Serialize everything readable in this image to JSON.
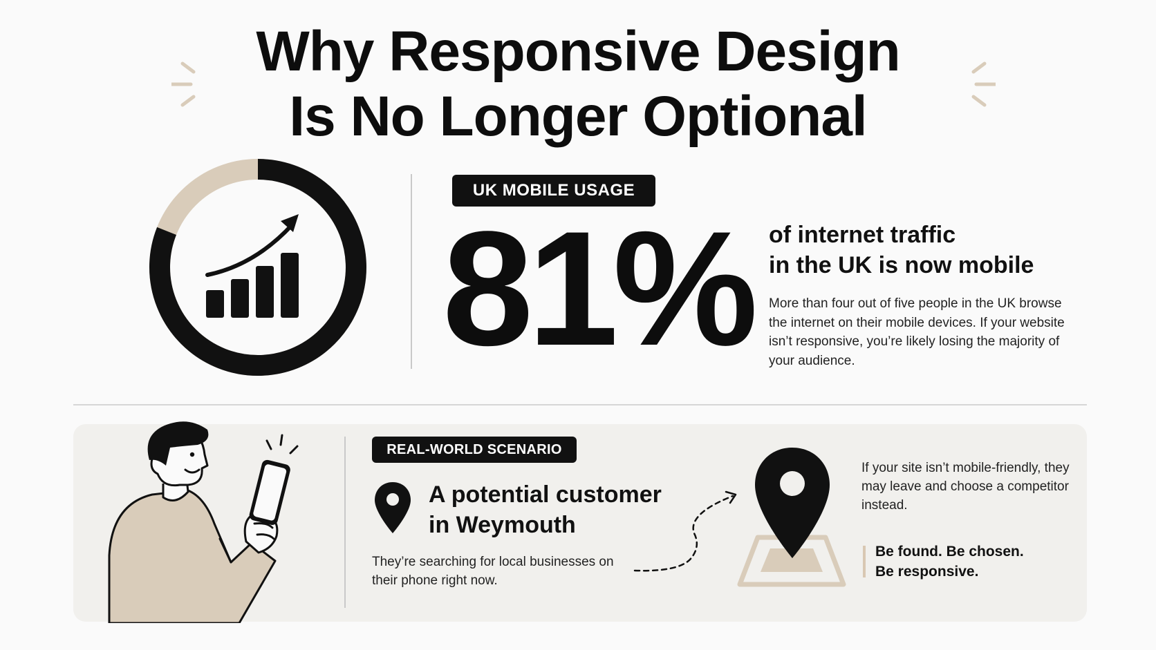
{
  "title": {
    "line1": "Why Responsive Design",
    "line2": "Is No Longer Optional"
  },
  "colors": {
    "accent": "#d9ccba",
    "dark": "#111111",
    "card_bg": "#f1f0ed"
  },
  "mobile_usage": {
    "badge": "UK MOBILE USAGE",
    "percent_value": 81,
    "stat": "81%",
    "headline_line1": "of internet traffic",
    "headline_line2": "in the UK is now mobile",
    "description": "More than four out of five people in the UK browse the internet on their mobile devices. If your website isn’t responsive, you’re likely losing the majority of your audience."
  },
  "scenario": {
    "badge": "REAL-WORLD SCENARIO",
    "headline_line1": "A potential customer",
    "headline_line2": "in Weymouth",
    "description": "They’re searching for local businesses on their phone right now.",
    "side_description": "If your site isn’t mobile-friendly, they may leave and choose a competitor instead.",
    "tagline_line1": "Be found. Be chosen.",
    "tagline_line2": "Be responsive."
  },
  "icons": {
    "growth": "growth-chart-icon",
    "pin": "location-pin-icon",
    "map": "map-location-icon",
    "person": "person-with-phone-illustration"
  }
}
